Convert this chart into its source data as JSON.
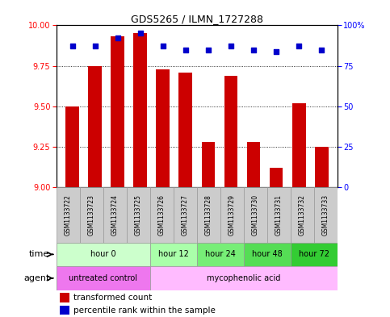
{
  "title": "GDS5265 / ILMN_1727288",
  "samples": [
    "GSM1133722",
    "GSM1133723",
    "GSM1133724",
    "GSM1133725",
    "GSM1133726",
    "GSM1133727",
    "GSM1133728",
    "GSM1133729",
    "GSM1133730",
    "GSM1133731",
    "GSM1133732",
    "GSM1133733"
  ],
  "bar_values": [
    9.5,
    9.75,
    9.93,
    9.95,
    9.73,
    9.71,
    9.28,
    9.69,
    9.28,
    9.12,
    9.52,
    9.25
  ],
  "percentile_values": [
    87,
    87,
    92,
    95,
    87,
    85,
    85,
    87,
    85,
    84,
    87,
    85
  ],
  "ylim_left": [
    9,
    10
  ],
  "ylim_right": [
    0,
    100
  ],
  "yticks_left": [
    9,
    9.25,
    9.5,
    9.75,
    10
  ],
  "yticks_right": [
    0,
    25,
    50,
    75,
    100
  ],
  "bar_color": "#cc0000",
  "dot_color": "#0000cc",
  "bar_base": 9,
  "time_groups": [
    {
      "label": "hour 0",
      "start": 0,
      "end": 4,
      "color": "#ccffcc"
    },
    {
      "label": "hour 12",
      "start": 4,
      "end": 6,
      "color": "#aaffaa"
    },
    {
      "label": "hour 24",
      "start": 6,
      "end": 8,
      "color": "#77ee77"
    },
    {
      "label": "hour 48",
      "start": 8,
      "end": 10,
      "color": "#55dd55"
    },
    {
      "label": "hour 72",
      "start": 10,
      "end": 12,
      "color": "#33cc33"
    }
  ],
  "agent_groups": [
    {
      "label": "untreated control",
      "start": 0,
      "end": 4,
      "color": "#ee77ee"
    },
    {
      "label": "mycophenolic acid",
      "start": 4,
      "end": 12,
      "color": "#ffbbff"
    }
  ],
  "legend_bar_label": "transformed count",
  "legend_dot_label": "percentile rank within the sample",
  "sample_box_color": "#cccccc",
  "background_color": "#ffffff",
  "grid_yticks": [
    9.25,
    9.5,
    9.75
  ]
}
